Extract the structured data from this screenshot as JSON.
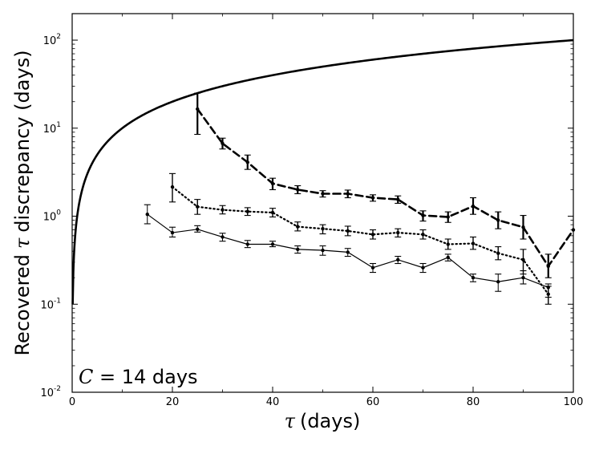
{
  "chart_data": {
    "type": "line",
    "title": "",
    "xlabel": "(days)",
    "xlabel_symbol": "τ",
    "ylabel_prefix": "Recovered",
    "ylabel_symbol": "τ",
    "ylabel_suffix": "discrepancy (days)",
    "xlim": [
      0,
      100
    ],
    "ylim": [
      0.01,
      200
    ],
    "yscale": "log",
    "grid": false,
    "x_ticks": [
      0,
      20,
      40,
      60,
      80,
      100
    ],
    "x_tick_labels": [
      "0",
      "20",
      "40",
      "60",
      "80",
      "100"
    ],
    "y_ticks": [
      0.01,
      0.1,
      1,
      10,
      100
    ],
    "y_tick_bases": [
      "10",
      "10",
      "10",
      "10",
      "10"
    ],
    "y_tick_exps": [
      "-2",
      "-1",
      "0",
      "1",
      "2"
    ],
    "annotation": {
      "symbol": "C",
      "text": " = 14 days"
    },
    "series": [
      {
        "name": "reference y = x",
        "style": "solid-thick",
        "function": "y=x",
        "x_range": [
          0.1,
          100
        ]
      },
      {
        "name": "dashed",
        "style": "dashed",
        "x": [
          25,
          30,
          35,
          40,
          45,
          50,
          55,
          60,
          65,
          70,
          75,
          80,
          85,
          90,
          95,
          100
        ],
        "y": [
          16.5,
          6.7,
          4.1,
          2.35,
          2.0,
          1.8,
          1.8,
          1.62,
          1.55,
          1.02,
          0.98,
          1.3,
          0.9,
          0.75,
          0.27,
          0.7
        ],
        "err_low": [
          8.5,
          5.8,
          3.4,
          2.0,
          1.8,
          1.65,
          1.62,
          1.48,
          1.4,
          0.88,
          0.85,
          1.05,
          0.72,
          0.55,
          0.2,
          null
        ],
        "err_high": [
          25.0,
          7.7,
          4.95,
          2.7,
          2.22,
          1.95,
          1.98,
          1.75,
          1.7,
          1.15,
          1.12,
          1.62,
          1.12,
          1.02,
          0.37,
          null
        ]
      },
      {
        "name": "dotted",
        "style": "dotted",
        "x": [
          20,
          25,
          30,
          35,
          40,
          45,
          50,
          55,
          60,
          65,
          70,
          75,
          80,
          85,
          90,
          95
        ],
        "y": [
          2.15,
          1.28,
          1.18,
          1.13,
          1.1,
          0.76,
          0.72,
          0.68,
          0.62,
          0.65,
          0.62,
          0.48,
          0.49,
          0.38,
          0.32,
          0.13
        ],
        "err_low": [
          1.45,
          1.05,
          1.06,
          1.02,
          0.98,
          0.68,
          0.63,
          0.6,
          0.55,
          0.58,
          0.55,
          0.42,
          0.42,
          0.32,
          0.22,
          0.1
        ],
        "err_high": [
          3.05,
          1.55,
          1.32,
          1.25,
          1.23,
          0.86,
          0.8,
          0.77,
          0.7,
          0.72,
          0.7,
          0.55,
          0.58,
          0.45,
          0.42,
          0.16
        ]
      },
      {
        "name": "solid-thin",
        "style": "solid-thin",
        "x": [
          15,
          20,
          25,
          30,
          35,
          40,
          45,
          50,
          55,
          60,
          65,
          70,
          75,
          80,
          85,
          90,
          95
        ],
        "y": [
          1.05,
          0.65,
          0.71,
          0.58,
          0.48,
          0.48,
          0.42,
          0.41,
          0.39,
          0.26,
          0.32,
          0.26,
          0.34,
          0.2,
          0.18,
          0.2,
          0.155
        ],
        "err_low": [
          0.82,
          0.58,
          0.66,
          0.52,
          0.44,
          0.45,
          0.38,
          0.36,
          0.35,
          0.23,
          0.29,
          0.23,
          0.31,
          0.18,
          0.14,
          0.17,
          0.12
        ],
        "err_high": [
          1.35,
          0.75,
          0.78,
          0.64,
          0.53,
          0.52,
          0.46,
          0.46,
          0.43,
          0.29,
          0.35,
          0.29,
          0.37,
          0.22,
          0.22,
          0.24,
          0.17
        ]
      }
    ]
  }
}
